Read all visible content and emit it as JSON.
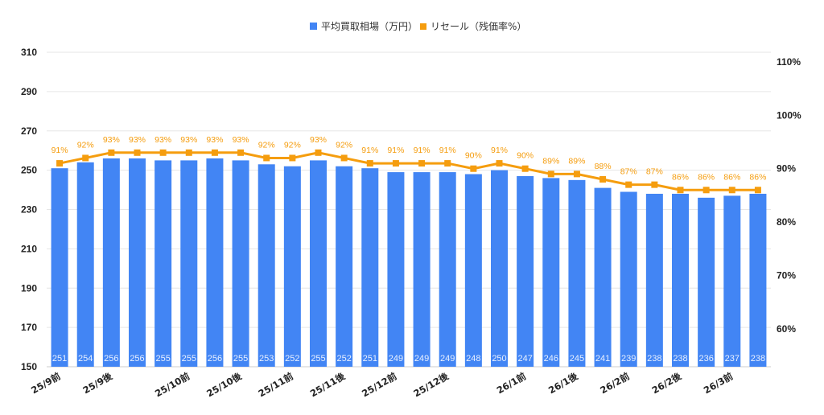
{
  "chart_data": {
    "type": "bar+line",
    "legend_position": "top",
    "grid": true,
    "categories": [
      "25/9前",
      "",
      "25/9後",
      "",
      "",
      "25/10前",
      "",
      "25/10後",
      "",
      "25/11前",
      "",
      "25/11後",
      "",
      "25/12前",
      "",
      "25/12後",
      "",
      "",
      "26/1前",
      "",
      "26/1後",
      "",
      "26/2前",
      "",
      "26/2後",
      "",
      "26/3前",
      ""
    ],
    "series": [
      {
        "name": "平均買取相場（万円）",
        "type": "bar",
        "axis": "left",
        "color": "#4285f4",
        "values": [
          251,
          254,
          256,
          256,
          255,
          255,
          256,
          255,
          253,
          252,
          255,
          252,
          251,
          249,
          249,
          249,
          248,
          250,
          247,
          246,
          245,
          241,
          239,
          238,
          238,
          236,
          237,
          238
        ]
      },
      {
        "name": "リセール（残価率%）",
        "type": "line",
        "axis": "right",
        "color": "#f59d0e",
        "values": [
          91,
          92,
          93,
          93,
          93,
          93,
          93,
          93,
          92,
          92,
          93,
          92,
          91,
          91,
          91,
          91,
          90,
          91,
          90,
          89,
          89,
          88,
          87,
          87,
          86,
          86,
          86,
          86
        ]
      }
    ],
    "left_axis": {
      "ylim": [
        150,
        310
      ],
      "ticks": [
        "150",
        "170",
        "190",
        "210",
        "230",
        "250",
        "270",
        "290",
        "310"
      ]
    },
    "right_axis": {
      "ylim": [
        52.9,
        111.8
      ],
      "ticks": [
        "60%",
        "70%",
        "80%",
        "90%",
        "100%",
        "110%"
      ],
      "tick_values": [
        60,
        70,
        80,
        90,
        100,
        110
      ]
    }
  }
}
